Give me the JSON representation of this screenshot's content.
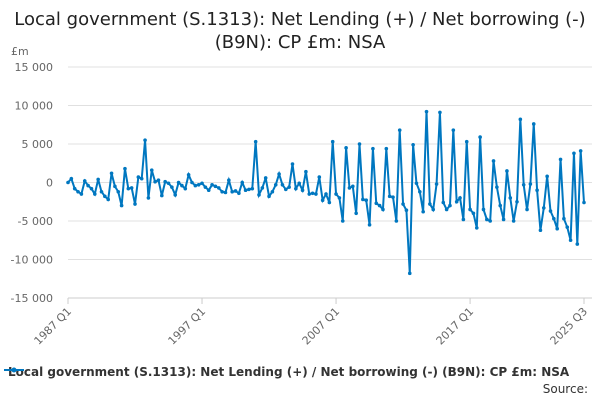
{
  "chart_data": {
    "type": "line",
    "title": "Local government (S.1313): Net Lending (+) / Net borrowing (-) (B9N): CP £m: NSA",
    "ylabel": "£m",
    "ylim": [
      -15000,
      15000
    ],
    "yticks": [
      15000,
      10000,
      5000,
      0,
      -5000,
      -10000,
      -15000
    ],
    "ytick_labels": [
      "15 000",
      "10 000",
      "5 000",
      "0",
      "-5 000",
      "-10 000",
      "-15 000"
    ],
    "xtick_labels": [
      "1987 Q1",
      "1997 Q1",
      "2007 Q1",
      "2017 Q1",
      "2025 Q3"
    ],
    "x_start": "1987 Q1",
    "x_end": "2025 Q3",
    "grid": true,
    "legend_position": "bottom",
    "color": "#0077c0",
    "series": [
      {
        "name": "Local government (S.1313): Net Lending (+) / Net borrowing (-) (B9N): CP £m: NSA",
        "values": [
          0,
          500,
          -800,
          -1200,
          -1500,
          200,
          -400,
          -800,
          -1500,
          400,
          -1200,
          -1800,
          -2200,
          1200,
          -500,
          -1200,
          -3000,
          1800,
          -800,
          -700,
          -2800,
          700,
          500,
          5500,
          -2000,
          1600,
          100,
          300,
          -1700,
          100,
          -100,
          -600,
          -1600,
          0,
          -400,
          -800,
          1000,
          0,
          -400,
          -300,
          -100,
          -600,
          -1000,
          -300,
          -500,
          -700,
          -1200,
          -1300,
          300,
          -1200,
          -1100,
          -1400,
          0,
          -1000,
          -900,
          -800,
          5300,
          -1600,
          -700,
          600,
          -1800,
          -1200,
          -300,
          1100,
          -300,
          -900,
          -600,
          2400,
          -800,
          -100,
          -1000,
          1400,
          -1500,
          -1400,
          -1500,
          700,
          -2300,
          -1500,
          -2600,
          5300,
          -1500,
          -2000,
          -5000,
          4500,
          -700,
          -500,
          -4000,
          5000,
          -2200,
          -2300,
          -5500,
          4400,
          -2700,
          -3000,
          -3500,
          4400,
          -1800,
          -1900,
          -5000,
          6800,
          -2800,
          -3600,
          -11800,
          4900,
          -100,
          -1200,
          -3800,
          9200,
          -2800,
          -3500,
          -200,
          9100,
          -2600,
          -3500,
          -3000,
          6800,
          -2500,
          -2000,
          -4800,
          5300,
          -3500,
          -4000,
          -5900,
          5900,
          -3500,
          -4800,
          -5000,
          2800,
          -600,
          -3000,
          -4800,
          1500,
          -2000,
          -5000,
          -2500,
          8200,
          -300,
          -3500,
          -200,
          7600,
          -1000,
          -6200,
          -3300,
          800,
          -3700,
          -4700,
          -6000,
          3000,
          -4700,
          -5800,
          -7500,
          3800,
          -8000,
          4100,
          -2600
        ]
      }
    ]
  },
  "source_label": "Source:"
}
